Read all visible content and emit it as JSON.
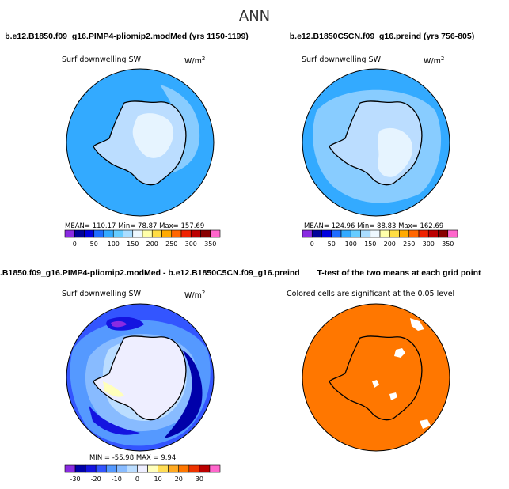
{
  "figure": {
    "title": "ANN"
  },
  "colors": {
    "seq": [
      "#8a2be2",
      "#000099",
      "#0000dd",
      "#1e6cff",
      "#33aaff",
      "#66ccff",
      "#aaddff",
      "#eef8ff",
      "#ffffaa",
      "#ffdd44",
      "#ffaa00",
      "#ff6600",
      "#ee2200",
      "#bb0000",
      "#880000",
      "#ff66cc"
    ],
    "diff": [
      "#8a2be2",
      "#0000aa",
      "#1414e0",
      "#3355ff",
      "#5599ff",
      "#88bbff",
      "#bbddff",
      "#eeeeff",
      "#ffffbb",
      "#ffdd55",
      "#ffaa22",
      "#ff7700",
      "#ee3300",
      "#bb0000",
      "#ff66cc"
    ],
    "ocean_pi": "#33aaff",
    "ocean_pi_light": "#88ccff",
    "ice_pi": "#bbddff",
    "ice_light": "#e6f4ff",
    "ttest": "#ff7700"
  },
  "chart_data": [
    {
      "type": "heatmap",
      "title": "b.e12.B1850.f09_g16.PIMP4-pliomip2.modMed (yrs 1150-1199)",
      "variable": "Surf downwelling SW",
      "units": "W/m",
      "units_exp": "2",
      "stats": "MEAN= 110.17   Min=  78.87   Max= 157.69",
      "mean": 110.17,
      "min": 78.87,
      "max": 157.69,
      "colorbar_ticks": [
        "0",
        "50",
        "100",
        "150",
        "200",
        "250",
        "300",
        "350"
      ]
    },
    {
      "type": "heatmap",
      "title": "b.e12.B1850C5CN.f09_g16.preind (yrs 756-805)",
      "variable": "Surf downwelling SW",
      "units": "W/m",
      "units_exp": "2",
      "stats": "MEAN= 124.96   Min=  88.83   Max= 162.69",
      "mean": 124.96,
      "min": 88.83,
      "max": 162.69,
      "colorbar_ticks": [
        "0",
        "50",
        "100",
        "150",
        "200",
        "250",
        "300",
        "350"
      ]
    },
    {
      "type": "heatmap",
      "title": ".B1850.f09_g16.PIMP4-pliomip2.modMed - b.e12.B1850C5CN.f09_g16.preind",
      "variable": "Surf downwelling SW",
      "units": "W/m",
      "units_exp": "2",
      "stats": "MIN = -55.98  MAX =   9.94",
      "min": -55.98,
      "max": 9.94,
      "colorbar_ticks": [
        "-30",
        "-20",
        "-10",
        "0",
        "10",
        "20",
        "30"
      ]
    },
    {
      "type": "heatmap",
      "title": "T-test of the two means at each grid point",
      "variable": "Colored cells are significant at the 0.05 level"
    }
  ]
}
